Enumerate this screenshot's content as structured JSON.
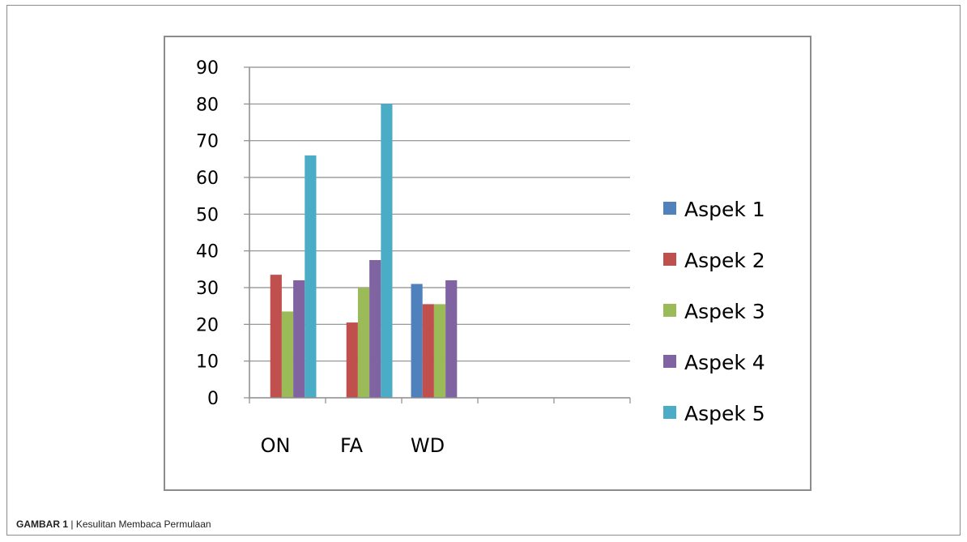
{
  "chart_data": {
    "type": "bar",
    "categories": [
      "ON",
      "FA",
      "WD",
      "",
      ""
    ],
    "series": [
      {
        "name": "Aspek 1",
        "color": "#4f81bd",
        "values": [
          0,
          0,
          31,
          0,
          0
        ]
      },
      {
        "name": "Aspek 2",
        "color": "#c0504d",
        "values": [
          33.5,
          20.5,
          25.5,
          0,
          0
        ]
      },
      {
        "name": "Aspek 3",
        "color": "#9bbb59",
        "values": [
          23.5,
          30,
          25.5,
          0,
          0
        ]
      },
      {
        "name": "Aspek 4",
        "color": "#8064a2",
        "values": [
          32,
          37.5,
          32,
          0,
          0
        ]
      },
      {
        "name": "Aspek 5",
        "color": "#4bacc6",
        "values": [
          66,
          80,
          0,
          0,
          0
        ]
      }
    ],
    "yticks": [
      "0",
      "10",
      "20",
      "30",
      "40",
      "50",
      "60",
      "70",
      "80",
      "90"
    ],
    "ylim": [
      0,
      90
    ],
    "grid": true,
    "legend": "right"
  },
  "caption": {
    "label": "GAMBAR 1",
    "separator": " | ",
    "text": "Kesulitan Membaca Permulaan"
  }
}
